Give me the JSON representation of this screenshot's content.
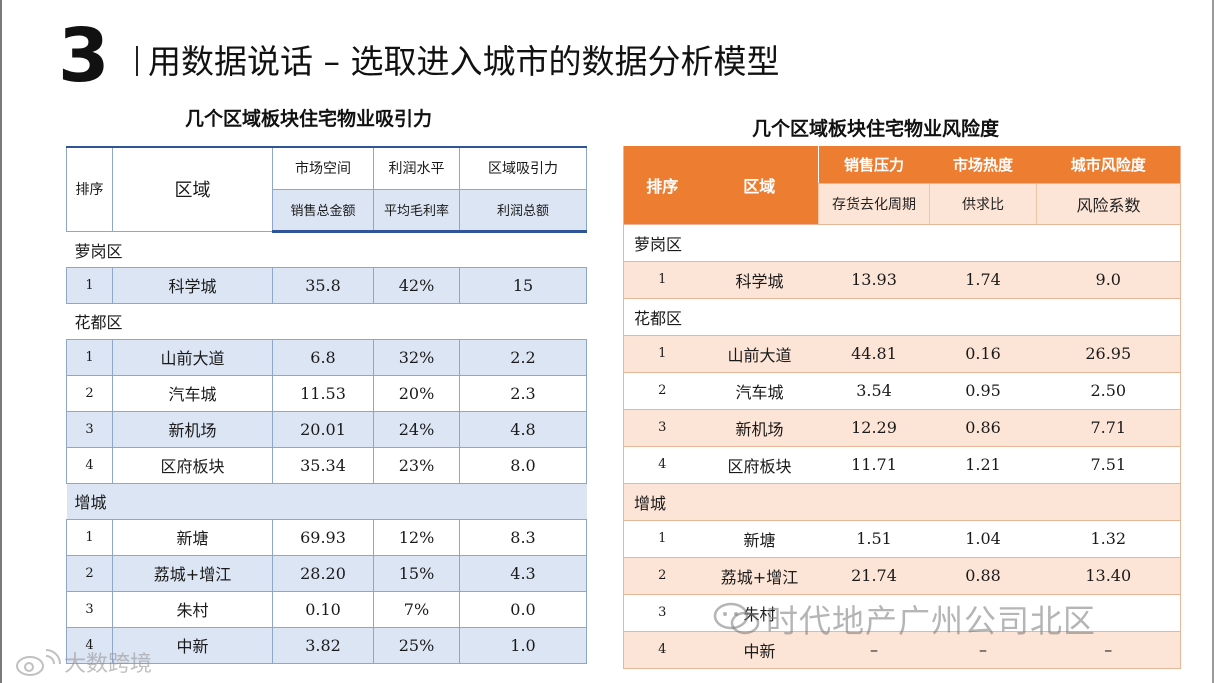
{
  "slide": {
    "section_number": "3",
    "title": "用数据说话 –  选取进入城市的数据分析模型"
  },
  "left_table": {
    "heading": "几个区域板块住宅物业吸引力",
    "headers": {
      "rank": "排序",
      "area": "区域",
      "col1_top": "市场空间",
      "col2_top": "利润水平",
      "col3_top": "区域吸引力",
      "col1_sub": "销售总金额",
      "col2_sub": "平均毛利率",
      "col3_sub": "利润总额"
    },
    "groups": [
      {
        "name": "萝岗区",
        "rows": [
          {
            "rank": "1",
            "area": "科学城",
            "sales": "35.8",
            "margin": "42%",
            "profit": "15"
          }
        ]
      },
      {
        "name": "花都区",
        "rows": [
          {
            "rank": "1",
            "area": "山前大道",
            "sales": "6.8",
            "margin": "32%",
            "profit": "2.2"
          },
          {
            "rank": "2",
            "area": "汽车城",
            "sales": "11.53",
            "margin": "20%",
            "profit": "2.3"
          },
          {
            "rank": "3",
            "area": "新机场",
            "sales": "20.01",
            "margin": "24%",
            "profit": "4.8"
          },
          {
            "rank": "4",
            "area": "区府板块",
            "sales": "35.34",
            "margin": "23%",
            "profit": "8.0"
          }
        ]
      },
      {
        "name": "增城",
        "rows": [
          {
            "rank": "1",
            "area": "新塘",
            "sales": "69.93",
            "margin": "12%",
            "profit": "8.3"
          },
          {
            "rank": "2",
            "area": "荔城+增江",
            "sales": "28.20",
            "margin": "15%",
            "profit": "4.3"
          },
          {
            "rank": "3",
            "area": "朱村",
            "sales": "0.10",
            "margin": "7%",
            "profit": "0.0"
          },
          {
            "rank": "4",
            "area": "中新",
            "sales": "3.82",
            "margin": "25%",
            "profit": "1.0"
          }
        ]
      }
    ]
  },
  "right_table": {
    "heading": "几个区域板块住宅物业风险度",
    "headers": {
      "rank": "排序",
      "area": "区域",
      "col1_top": "销售压力",
      "col2_top": "市场热度",
      "col3_top": "城市风险度",
      "col1_sub": "存货去化周期",
      "col2_sub": "供求比",
      "col3_sub": "风险系数"
    },
    "groups": [
      {
        "name": "萝岗区",
        "rows": [
          {
            "rank": "1",
            "area": "科学城",
            "cycle": "13.93",
            "ratio": "1.74",
            "risk": "9.0"
          }
        ]
      },
      {
        "name": "花都区",
        "rows": [
          {
            "rank": "1",
            "area": "山前大道",
            "cycle": "44.81",
            "ratio": "0.16",
            "risk": "26.95"
          },
          {
            "rank": "2",
            "area": "汽车城",
            "cycle": "3.54",
            "ratio": "0.95",
            "risk": "2.50"
          },
          {
            "rank": "3",
            "area": "新机场",
            "cycle": "12.29",
            "ratio": "0.86",
            "risk": "7.71"
          },
          {
            "rank": "4",
            "area": "区府板块",
            "cycle": "11.71",
            "ratio": "1.21",
            "risk": "7.51"
          }
        ]
      },
      {
        "name": "增城",
        "rows": [
          {
            "rank": "1",
            "area": "新塘",
            "cycle": "1.51",
            "ratio": "1.04",
            "risk": "1.32"
          },
          {
            "rank": "2",
            "area": "荔城+增江",
            "cycle": "21.74",
            "ratio": "0.88",
            "risk": "13.40"
          },
          {
            "rank": "3",
            "area": "朱村",
            "cycle": "",
            "ratio": "",
            "risk": ""
          },
          {
            "rank": "4",
            "area": "中新",
            "cycle": "–",
            "ratio": "–",
            "risk": "–"
          }
        ]
      }
    ]
  },
  "watermarks": {
    "right": "时代地产广州公司北区",
    "left": "大数跨境",
    "right_icon": "wechat-icon",
    "left_icon": "weibo-logo-icon"
  },
  "colors": {
    "left_header_line": "#2f5597",
    "left_shade": "#dce5f4",
    "right_header": "#ed7d31",
    "right_shade": "#fce4d6"
  }
}
